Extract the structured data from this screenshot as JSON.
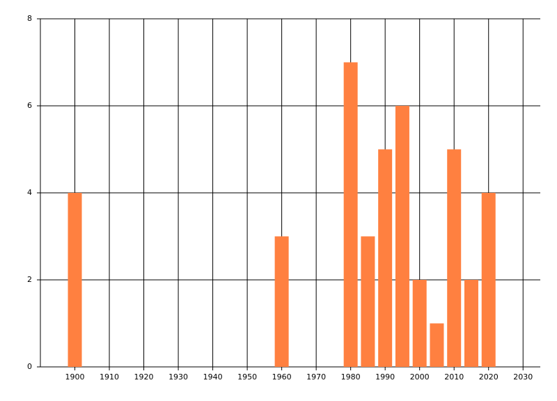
{
  "chart_data": {
    "type": "bar",
    "x": [
      1900,
      1960,
      1980,
      1985,
      1990,
      1995,
      2000,
      2005,
      2010,
      2015,
      2020
    ],
    "values": [
      4,
      3,
      7,
      3,
      5,
      6,
      2,
      1,
      5,
      2,
      4
    ],
    "color": "#ff8040",
    "xlim": [
      1890,
      2035
    ],
    "xticks": [
      1900,
      1910,
      1920,
      1930,
      1940,
      1950,
      1960,
      1970,
      1980,
      1990,
      2000,
      2010,
      2020,
      2030
    ],
    "ylim": [
      0,
      8
    ],
    "yticks": [
      0,
      2,
      4,
      6,
      8
    ],
    "grid": true
  }
}
